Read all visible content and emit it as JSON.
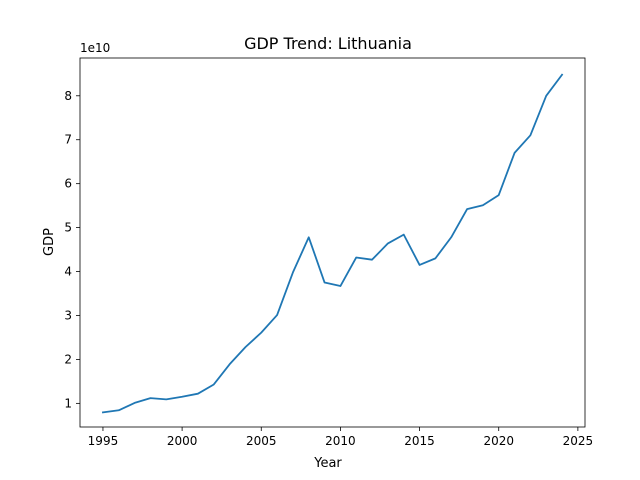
{
  "chart_data": {
    "type": "line",
    "title": "GDP Trend: Lithuania",
    "xlabel": "Year",
    "ylabel": "GDP",
    "y_offset_label": "1e10",
    "y_scale": 10000000000,
    "xlim": [
      1993.55,
      2025.45
    ],
    "ylim": [
      4620000000,
      88600000000
    ],
    "x_ticks": [
      1995,
      2000,
      2005,
      2010,
      2015,
      2020,
      2025
    ],
    "x_tick_labels": [
      "1995",
      "2000",
      "2005",
      "2010",
      "2015",
      "2020",
      "2025"
    ],
    "y_ticks": [
      1,
      2,
      3,
      4,
      5,
      6,
      7,
      8
    ],
    "y_tick_labels": [
      "1",
      "2",
      "3",
      "4",
      "5",
      "6",
      "7",
      "8"
    ],
    "grid": false,
    "legend": "none",
    "line_color": "#1f77b4",
    "series": [
      {
        "x": [
          1995,
          1996,
          1997,
          1998,
          1999,
          2000,
          2001,
          2002,
          2003,
          2004,
          2005,
          2006,
          2007,
          2008,
          2009,
          2010,
          2011,
          2012,
          2013,
          2014,
          2015,
          2016,
          2017,
          2018,
          2019,
          2020,
          2021,
          2022,
          2023,
          2024
        ],
        "values": [
          7950000000,
          8430000000,
          10100000000,
          11200000000,
          10900000000,
          11500000000,
          12200000000,
          14300000000,
          18900000000,
          22800000000,
          26100000000,
          30100000000,
          39800000000,
          47800000000,
          37500000000,
          36700000000,
          43200000000,
          42700000000,
          46400000000,
          48400000000,
          41500000000,
          43000000000,
          47800000000,
          54200000000,
          55100000000,
          57400000000,
          67000000000,
          71000000000,
          80000000000,
          84800000000
        ]
      }
    ]
  }
}
